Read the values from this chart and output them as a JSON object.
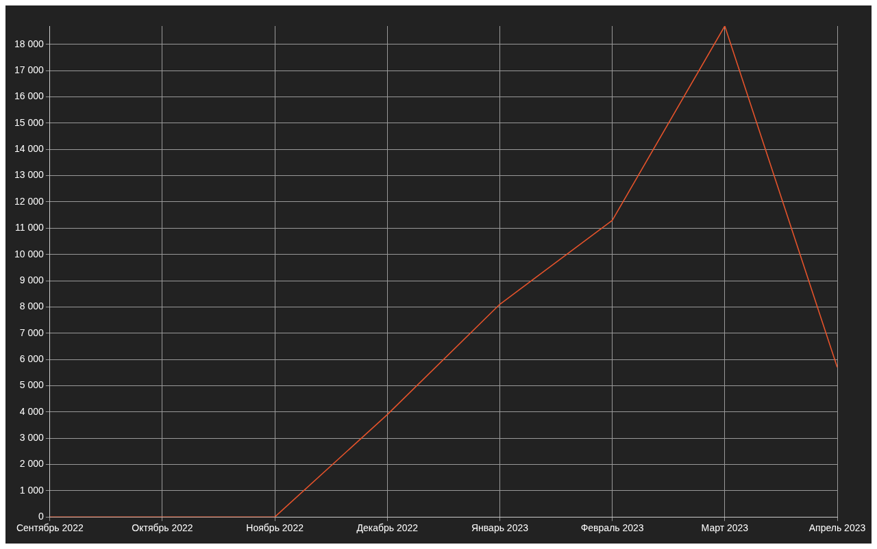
{
  "chart_data": {
    "type": "line",
    "categories": [
      "Сентябрь 2022",
      "Октябрь 2022",
      "Ноябрь 2022",
      "Декабрь 2022",
      "Январь 2023",
      "Февраль 2023",
      "Март 2023",
      "Апрель 2023"
    ],
    "series": [
      {
        "color": "#e5532b",
        "values": [
          0,
          0,
          0,
          3900,
          8100,
          11300,
          18700,
          5700
        ]
      }
    ],
    "ylim": [
      0,
      18700
    ],
    "yticks": [
      {
        "value": 0,
        "label": "0"
      },
      {
        "value": 1000,
        "label": "1 000"
      },
      {
        "value": 2000,
        "label": "2 000"
      },
      {
        "value": 3000,
        "label": "3 000"
      },
      {
        "value": 4000,
        "label": "4 000"
      },
      {
        "value": 5000,
        "label": "5 000"
      },
      {
        "value": 6000,
        "label": "6 000"
      },
      {
        "value": 7000,
        "label": "7 000"
      },
      {
        "value": 8000,
        "label": "8 000"
      },
      {
        "value": 9000,
        "label": "9 000"
      },
      {
        "value": 10000,
        "label": "10 000"
      },
      {
        "value": 11000,
        "label": "11 000"
      },
      {
        "value": 12000,
        "label": "12 000"
      },
      {
        "value": 13000,
        "label": "13 000"
      },
      {
        "value": 14000,
        "label": "14 000"
      },
      {
        "value": 15000,
        "label": "15 000"
      },
      {
        "value": 16000,
        "label": "16 000"
      },
      {
        "value": 17000,
        "label": "17 000"
      },
      {
        "value": 18000,
        "label": "18 000"
      }
    ],
    "grid": true,
    "marker": "none",
    "line_style": "solid",
    "legend": false
  }
}
